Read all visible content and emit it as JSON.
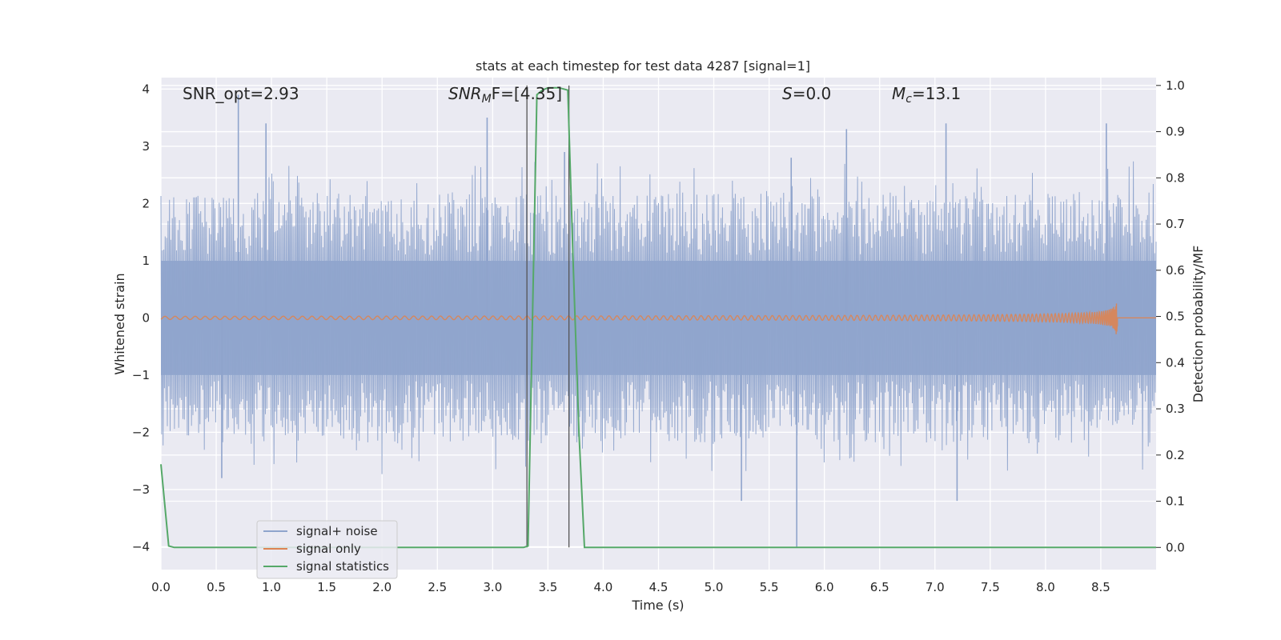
{
  "chart_data": {
    "type": "line",
    "title": "stats at each timestep for test data 4287 [signal=1]",
    "xlabel": "Time (s)",
    "ylabel_left": "Whitened strain",
    "ylabel_right": "Detection probability/MF",
    "xlim": [
      0.0,
      9.0
    ],
    "ylim_left": [
      -4.4,
      4.2
    ],
    "ylim_right": [
      -0.048,
      1.017
    ],
    "x_ticks": [
      "0.0",
      "0.5",
      "1.0",
      "1.5",
      "2.0",
      "2.5",
      "3.0",
      "3.5",
      "4.0",
      "4.5",
      "5.0",
      "5.5",
      "6.0",
      "6.5",
      "7.0",
      "7.5",
      "8.0",
      "8.5"
    ],
    "y_ticks_left": [
      "4",
      "3",
      "2",
      "1",
      "0",
      "−1",
      "−2",
      "−3",
      "−4"
    ],
    "y_ticks_right": [
      "1.0",
      "0.9",
      "0.8",
      "0.7",
      "0.6",
      "0.5",
      "0.4",
      "0.3",
      "0.2",
      "0.1",
      "0.0"
    ],
    "grid": true,
    "legend_placement": "lower left",
    "annotations": {
      "snr_opt": "SNR_opt=2.93",
      "snr_mf_sym": "SNR",
      "snr_mf_sub": "M",
      "snr_mf_rest": "F=[4.35]",
      "s_sym": "S",
      "s_rest": "=0.0",
      "mc_sym": "M",
      "mc_sub": "c",
      "mc_rest": "=13.1"
    },
    "vertical_markers_x": [
      3.31,
      3.69
    ],
    "series": [
      {
        "name": "signal+ noise",
        "color": "#8fa4cc",
        "axis": "left",
        "description_values": {
          "envelope_min": -4.0,
          "envelope_max": 3.9,
          "typical_abs": 2.2
        },
        "spikes": [
          [
            0.7,
            3.9
          ],
          [
            0.95,
            3.4
          ],
          [
            2.95,
            3.5
          ],
          [
            3.65,
            2.9
          ],
          [
            5.7,
            2.8
          ],
          [
            6.2,
            3.3
          ],
          [
            7.1,
            3.4
          ],
          [
            8.55,
            3.4
          ],
          [
            5.75,
            -4.0
          ],
          [
            7.2,
            -3.2
          ],
          [
            5.25,
            -3.2
          ],
          [
            0.55,
            -2.8
          ]
        ]
      },
      {
        "name": "signal only",
        "color": "#dd8452",
        "axis": "left",
        "chirp_end_time": 8.65,
        "chirp_peak_amplitude": 0.45
      },
      {
        "name": "signal statistics",
        "color": "#55a868",
        "axis": "right",
        "x": [
          0.0,
          0.07,
          0.12,
          3.28,
          3.32,
          3.4,
          3.45,
          3.5,
          3.6,
          3.68,
          3.73,
          3.78,
          3.83,
          9.0
        ],
        "y": [
          0.18,
          0.003,
          0.0,
          0.0,
          0.003,
          0.98,
          0.99,
          0.995,
          0.995,
          0.99,
          0.6,
          0.25,
          0.0,
          0.0
        ]
      }
    ]
  }
}
